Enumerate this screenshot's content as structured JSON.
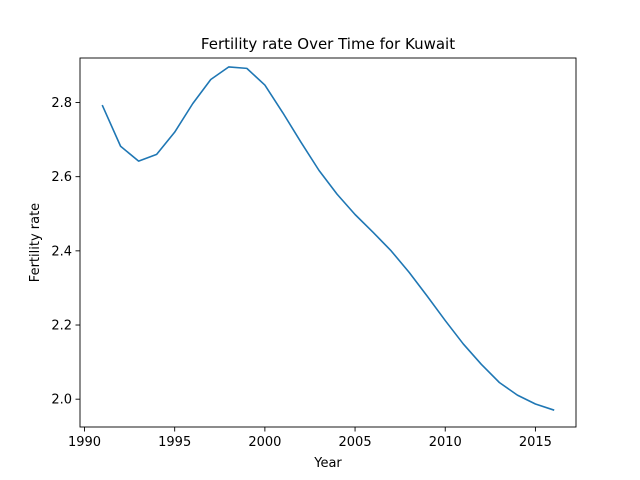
{
  "chart_data": {
    "type": "line",
    "title": "Fertility rate Over Time for Kuwait",
    "xlabel": "Year",
    "ylabel": "Fertility rate",
    "xlim": [
      1989.75,
      2017.25
    ],
    "ylim": [
      1.925,
      2.92
    ],
    "xticks": [
      1990,
      1995,
      2000,
      2005,
      2010,
      2015
    ],
    "yticks": [
      2.0,
      2.2,
      2.4,
      2.6,
      2.8
    ],
    "xtick_labels": [
      "1990",
      "1995",
      "2000",
      "2005",
      "2010",
      "2015"
    ],
    "ytick_labels": [
      "2.0",
      "2.2",
      "2.4",
      "2.6",
      "2.8"
    ],
    "grid": false,
    "series": [
      {
        "color": "#1f77b4",
        "x": [
          1991,
          1992,
          1993,
          1994,
          1995,
          1996,
          1997,
          1998,
          1999,
          2000,
          2001,
          2002,
          2003,
          2004,
          2005,
          2006,
          2007,
          2008,
          2009,
          2010,
          2011,
          2012,
          2013,
          2014,
          2015,
          2016
        ],
        "y": [
          2.791,
          2.682,
          2.642,
          2.66,
          2.72,
          2.797,
          2.862,
          2.896,
          2.892,
          2.847,
          2.772,
          2.693,
          2.617,
          2.553,
          2.498,
          2.45,
          2.4,
          2.342,
          2.278,
          2.212,
          2.149,
          2.094,
          2.045,
          2.011,
          1.987,
          1.971
        ]
      }
    ]
  }
}
